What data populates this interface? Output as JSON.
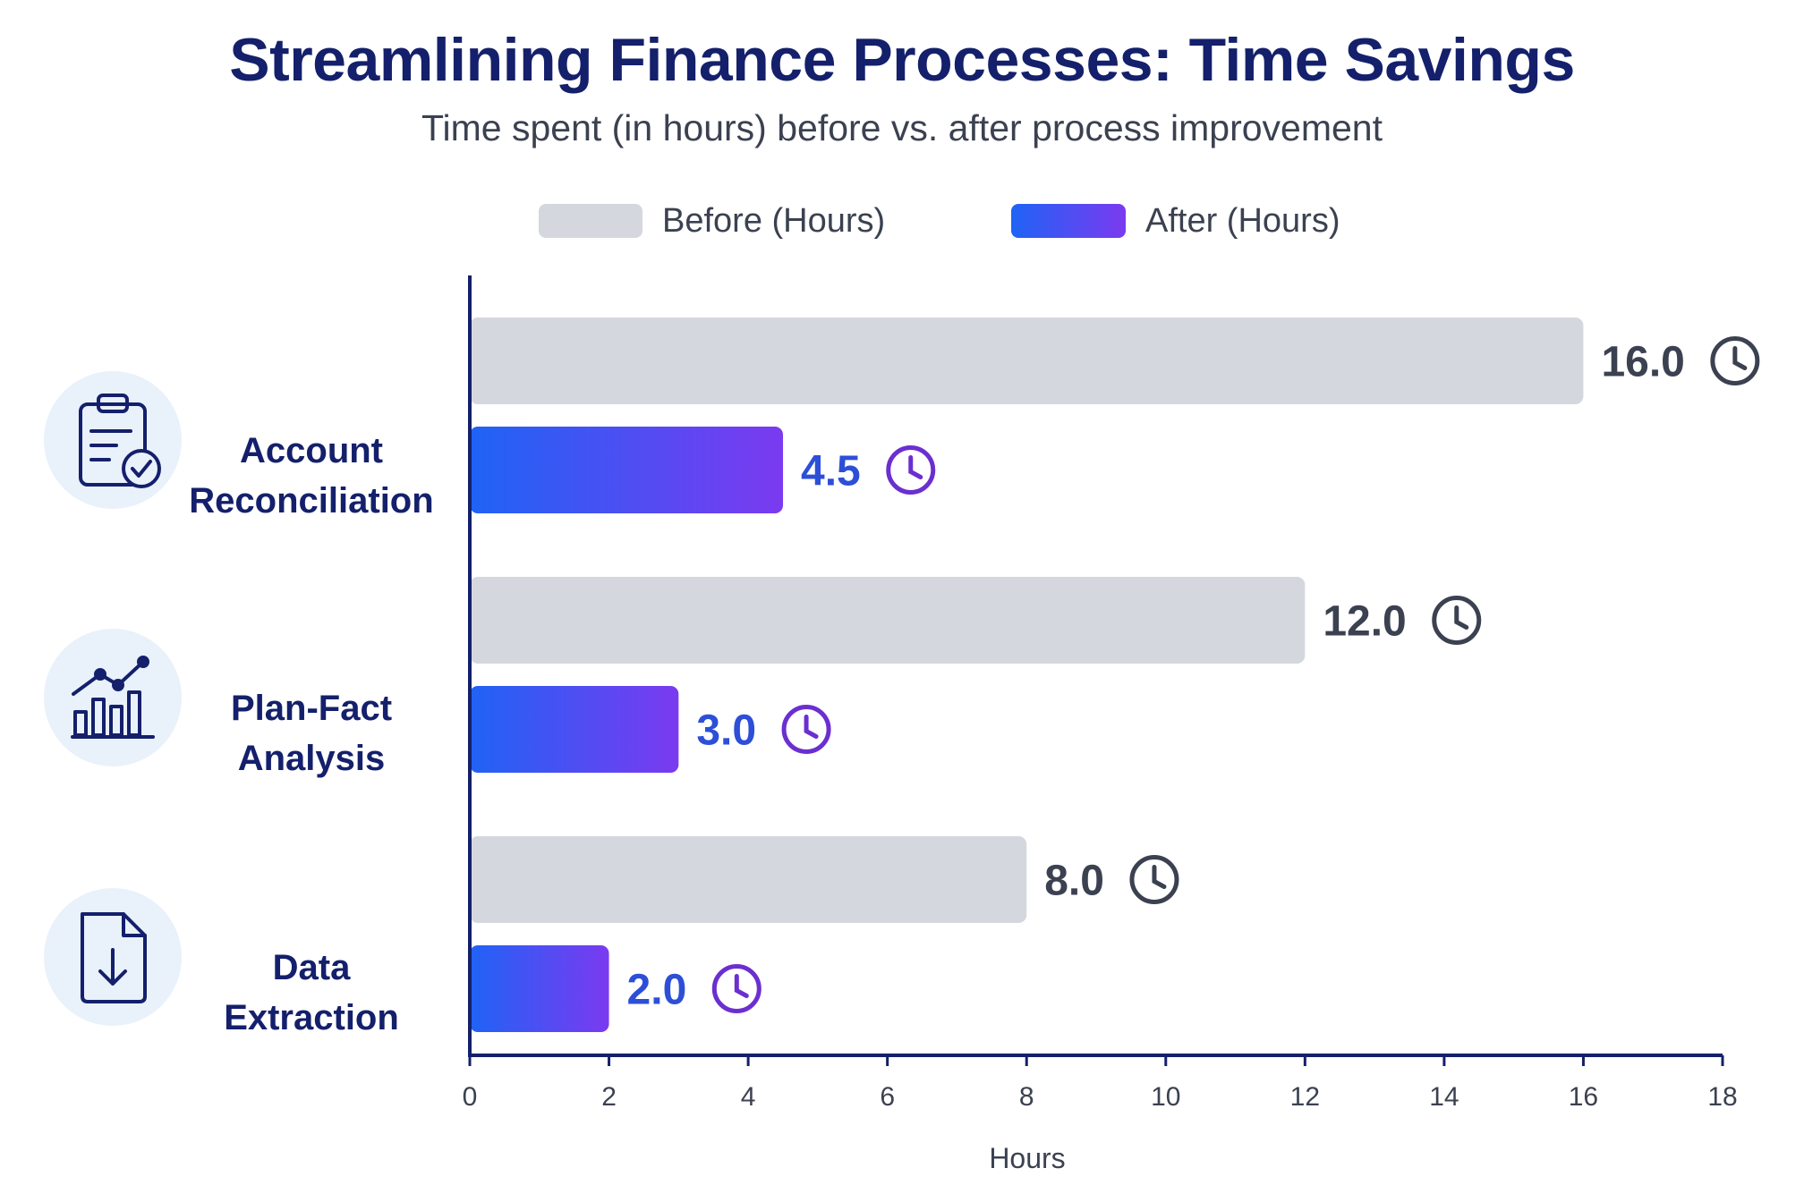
{
  "chart_data": {
    "type": "bar",
    "orientation": "horizontal",
    "title": "Streamlining Finance Processes: Time Savings",
    "subtitle": "Time spent (in hours) before vs. after process improvement",
    "xlabel": "Hours",
    "ylabel": "",
    "xlim": [
      0,
      18
    ],
    "x_ticks": [
      "0",
      "2",
      "4",
      "6",
      "8",
      "10",
      "12",
      "14",
      "16",
      "18"
    ],
    "categories": [
      {
        "lines": [
          "Account",
          "Reconciliation"
        ],
        "icon": "clipboard-check-icon"
      },
      {
        "lines": [
          "Plan-Fact",
          "Analysis"
        ],
        "icon": "bar-chart-trend-icon"
      },
      {
        "lines": [
          "Data",
          "Extraction"
        ],
        "icon": "document-download-icon"
      }
    ],
    "series": [
      {
        "name": "Before (Hours)",
        "values": [
          16.0,
          12.0,
          8.0
        ],
        "labels": [
          "16.0",
          "12.0",
          "8.0"
        ],
        "color": "#d5d7de",
        "label_color": "#3b4150",
        "clock_color": "#3b4150"
      },
      {
        "name": "After (Hours)",
        "values": [
          4.5,
          3.0,
          2.0
        ],
        "labels": [
          "4.5",
          "3.0",
          "2.0"
        ],
        "color_start": "#1f63f5",
        "color_end": "#7b3af0",
        "label_color": "#2d4fd8",
        "clock_color": "#6b2fd0"
      }
    ],
    "legend": "top-center",
    "grid": false,
    "axis_color": "#14206b",
    "icon_bg": "#e9f1fb"
  }
}
